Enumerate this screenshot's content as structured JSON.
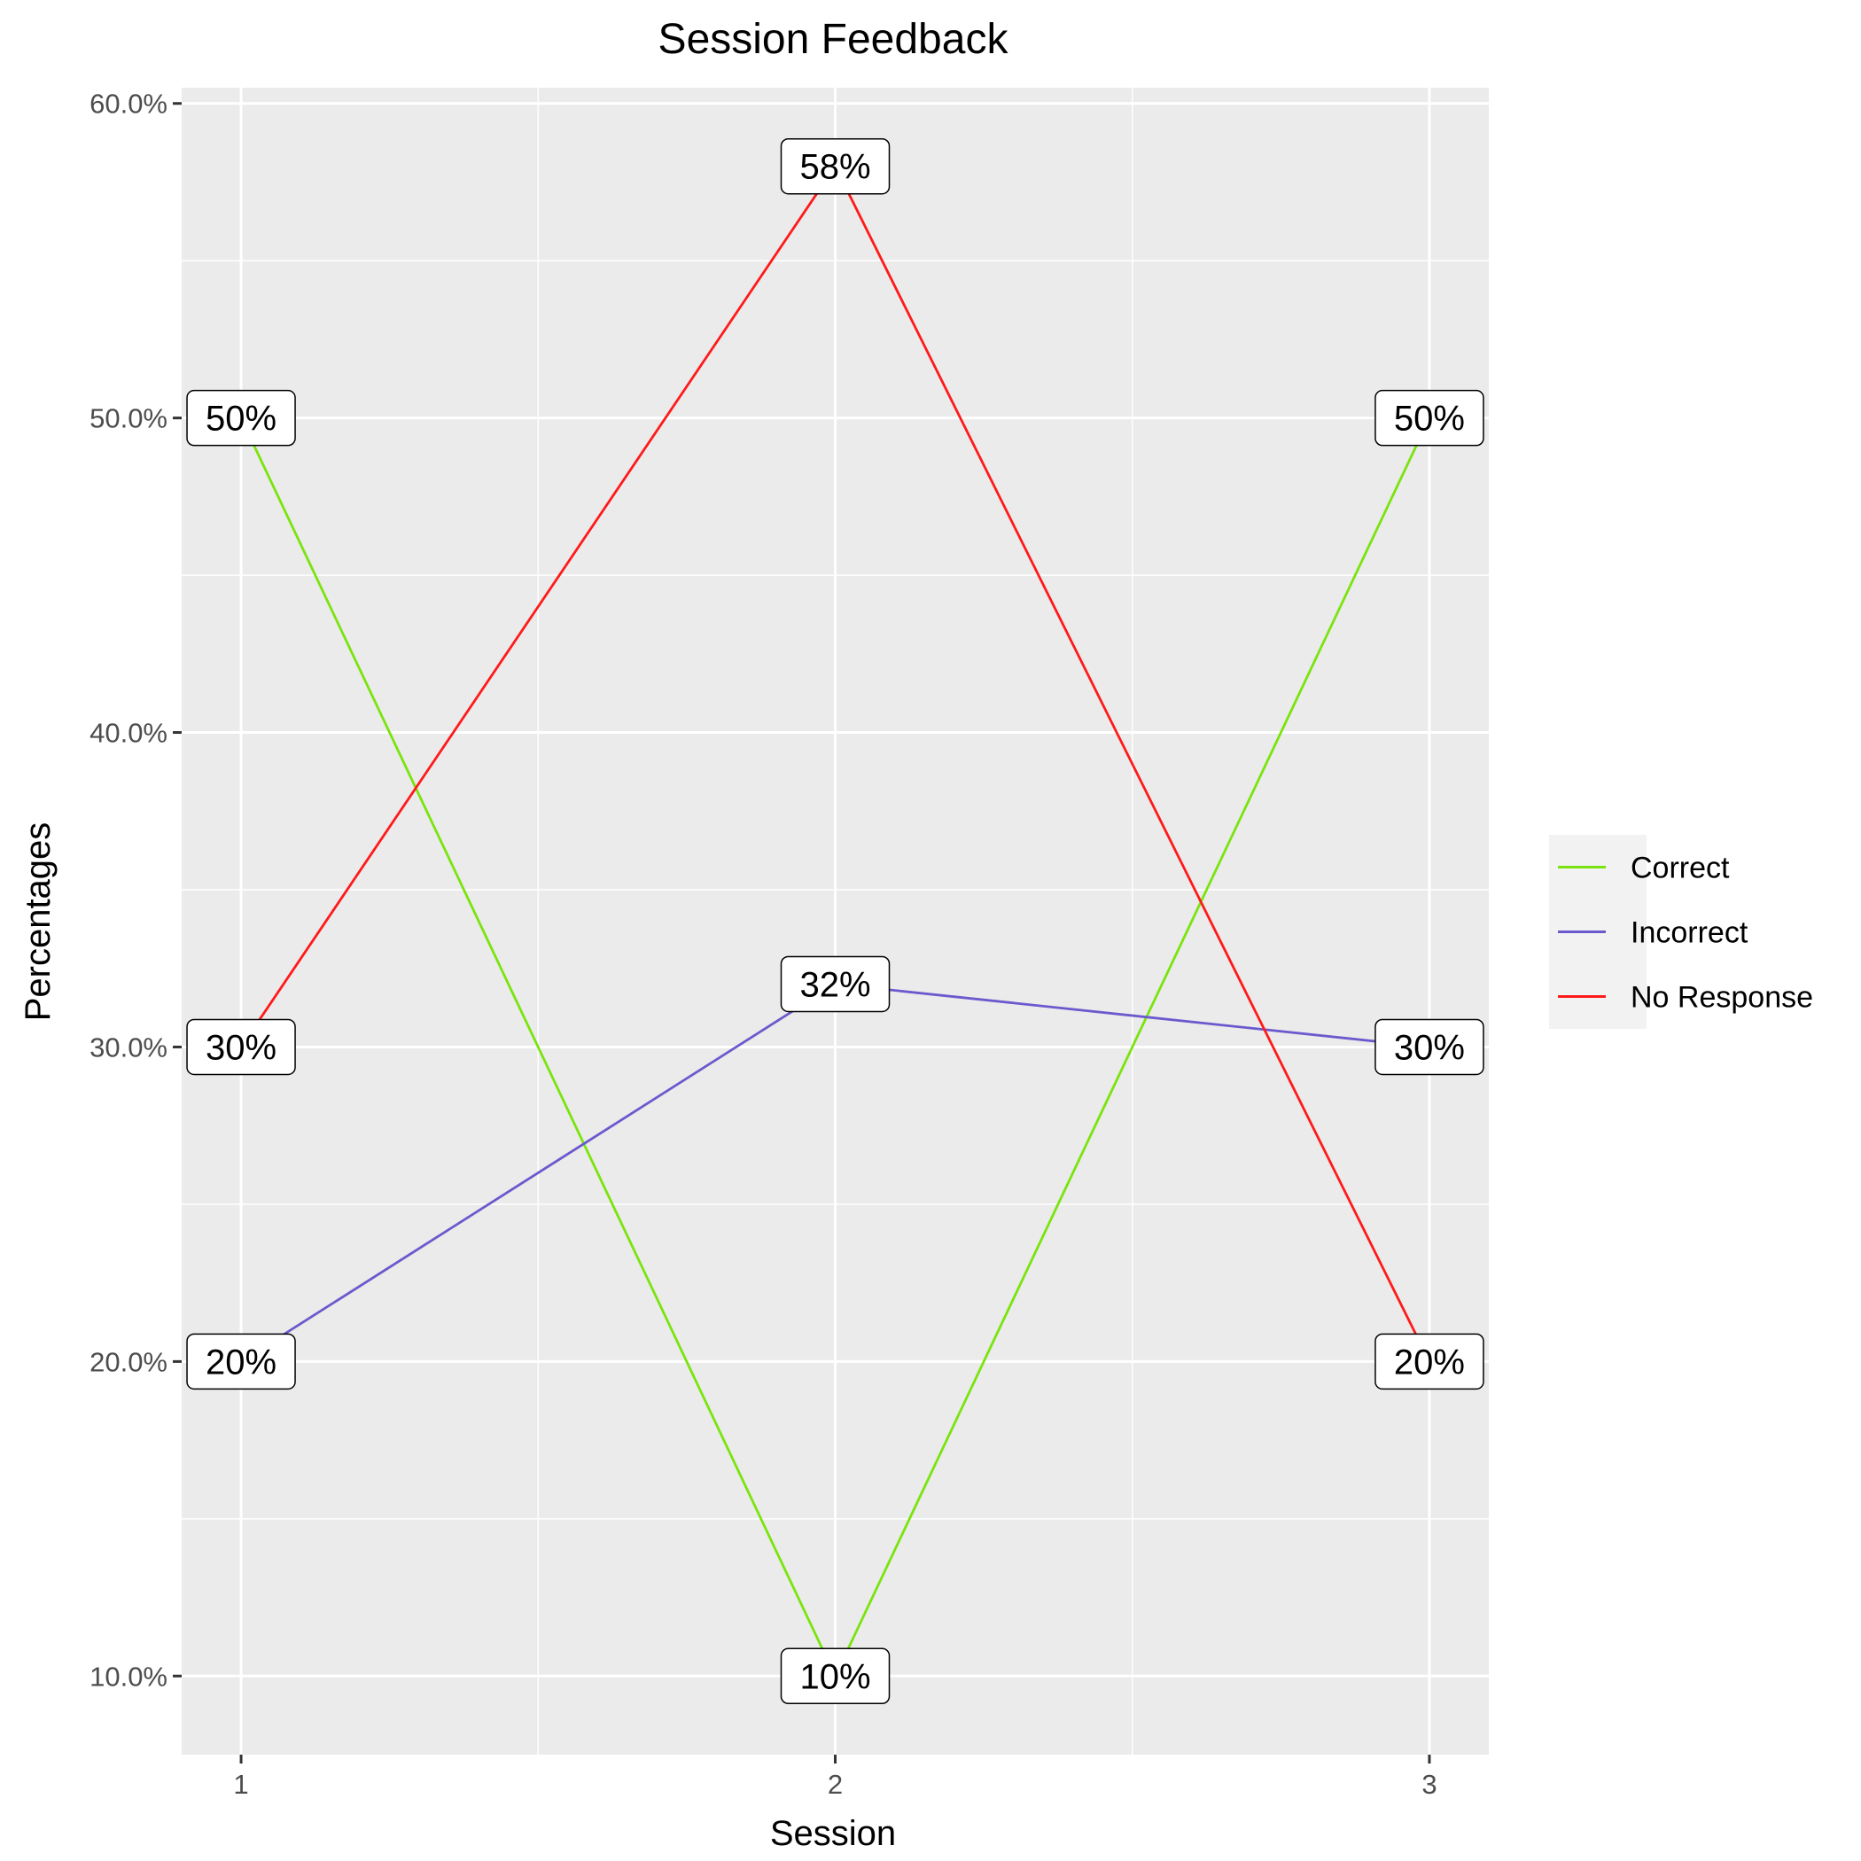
{
  "chart_data": {
    "type": "line",
    "title": "Session Feedback",
    "xlabel": "Session",
    "ylabel": "Percentages",
    "x": [
      1,
      2,
      3
    ],
    "x_tick_labels": [
      "1",
      "2",
      "3"
    ],
    "xlim": [
      0.9,
      3.1
    ],
    "ylim": [
      0.075,
      0.605
    ],
    "y_ticks": [
      0.1,
      0.2,
      0.3,
      0.4,
      0.5,
      0.6
    ],
    "y_tick_labels": [
      "10.0%",
      "20.0%",
      "30.0%",
      "40.0%",
      "50.0%",
      "60.0%"
    ],
    "grid": true,
    "legend_position": "right",
    "series": [
      {
        "name": "Correct",
        "values": [
          0.5,
          0.1,
          0.5
        ],
        "labels": [
          "50%",
          "10%",
          "50%"
        ],
        "color": "#7ae40e"
      },
      {
        "name": "Incorrect",
        "values": [
          0.2,
          0.32,
          0.3
        ],
        "labels": [
          "20%",
          "32%",
          "30%"
        ],
        "color": "#6a5acd"
      },
      {
        "name": "No Response",
        "values": [
          0.3,
          0.58,
          0.2
        ],
        "labels": [
          "30%",
          "58%",
          "20%"
        ],
        "color": "#ff1a1a"
      }
    ],
    "colors": {
      "panel": "#ebebeb",
      "grid": "#ffffff",
      "tick_text": "#4d4d4d",
      "legend_bg": "#f2f2f2"
    }
  }
}
